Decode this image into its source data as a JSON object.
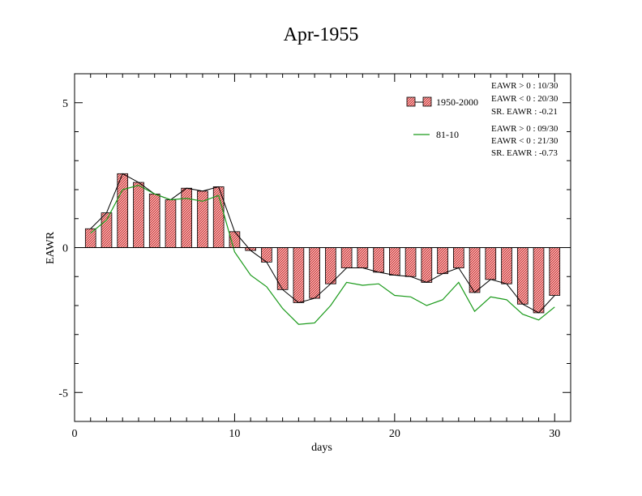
{
  "chart_data": {
    "type": "bar",
    "title": "Apr-1955",
    "xlabel": "days",
    "ylabel": "EAWR",
    "xlim": [
      0,
      31
    ],
    "ylim": [
      -6,
      6
    ],
    "xticks": [
      0,
      10,
      20,
      30
    ],
    "yticks": [
      -5,
      0,
      5
    ],
    "grid": false,
    "legend_position": "top-right",
    "colors": {
      "bar_fill": "#f4a6a6",
      "bar_hatch": "#c03030",
      "bar_edge": "#000000",
      "bar_line": "#000000",
      "climatology_line": "#1a9a1a",
      "zero_line": "#000000"
    },
    "x": [
      1,
      2,
      3,
      4,
      5,
      6,
      7,
      8,
      9,
      10,
      11,
      12,
      13,
      14,
      15,
      16,
      17,
      18,
      19,
      20,
      21,
      22,
      23,
      24,
      25,
      26,
      27,
      28,
      29,
      30
    ],
    "series": [
      {
        "name": "1950-2000",
        "type": "bar",
        "values": [
          0.65,
          1.2,
          2.55,
          2.25,
          1.85,
          1.65,
          2.05,
          1.95,
          2.1,
          0.55,
          -0.1,
          -0.5,
          -1.45,
          -1.9,
          -1.75,
          -1.25,
          -0.7,
          -0.7,
          -0.85,
          -0.95,
          -1.0,
          -1.2,
          -0.9,
          -0.7,
          -1.55,
          -1.1,
          -1.25,
          -1.95,
          -2.25,
          -1.65
        ],
        "stats": [
          "EAWR > 0 : 10/30",
          "EAWR < 0 : 20/30",
          "SR. EAWR : -0.21"
        ]
      },
      {
        "name": "81-10",
        "type": "line",
        "values": [
          0.5,
          0.95,
          2.0,
          2.15,
          1.85,
          1.65,
          1.7,
          1.6,
          1.8,
          -0.15,
          -0.95,
          -1.35,
          -2.1,
          -2.65,
          -2.6,
          -2.0,
          -1.2,
          -1.3,
          -1.25,
          -1.65,
          -1.7,
          -2.0,
          -1.8,
          -1.2,
          -2.2,
          -1.7,
          -1.8,
          -2.3,
          -2.5,
          -2.05
        ],
        "stats": [
          "EAWR > 0 : 09/30",
          "EAWR < 0 : 21/30",
          "SR. EAWR : -0.73"
        ]
      }
    ]
  }
}
